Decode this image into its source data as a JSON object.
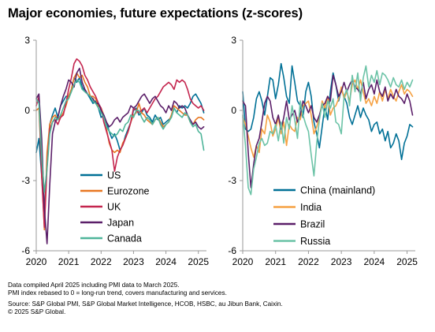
{
  "title": "Major economies, future expectations (z-scores)",
  "footnotes": {
    "line1": "Data compiled April 2025 including PMI data to March 2025.",
    "line2": "PMI index rebased to 0 = long-run trend, covers manufacturing and services.",
    "line3": "Source: S&P Global PMI, S&P Global Market Intelligence, HCOB, HSBC, au Jibun Bank, Caixin.",
    "line4": "© 2025 S&P Global."
  },
  "chart_data": [
    {
      "type": "line",
      "title": "",
      "xlabel": "",
      "ylabel": "",
      "ylim": [
        -6,
        3
      ],
      "xlim": [
        "2020-01",
        "2025-03"
      ],
      "yticks": [
        3,
        0,
        -3,
        -6
      ],
      "xticks": [
        "2020",
        "2021",
        "2022",
        "2023",
        "2024",
        "2025"
      ],
      "legend_position": "bottom-right",
      "x_start": "2020-01",
      "series": [
        {
          "name": "US",
          "color": "#007096",
          "values": [
            -1.8,
            -1.2,
            -2.8,
            -4.5,
            -2.2,
            -0.6,
            -0.2,
            0.1,
            -0.3,
            0.2,
            0.4,
            0.6,
            0.6,
            0.9,
            1.4,
            1.2,
            1.4,
            1.0,
            0.8,
            0.7,
            0.5,
            0.3,
            0.4,
            0.1,
            -0.3,
            -0.2,
            -0.5,
            -0.9,
            -1.2,
            -1.0,
            -1.3,
            -1.7,
            -1.5,
            -1.1,
            -0.8,
            -0.5,
            0.0,
            0.1,
            -0.2,
            -0.1,
            0.1,
            -0.2,
            -0.3,
            -0.5,
            -0.2,
            -0.4,
            -0.3,
            -0.6,
            -0.5,
            -0.4,
            -0.3,
            0.1,
            -0.1,
            0.2,
            0.1,
            0.2,
            0.1,
            0.3,
            0.6,
            0.7,
            0.5,
            0.3,
            -0.1
          ]
        },
        {
          "name": "Eurozone",
          "color": "#e87722",
          "values": [
            0.0,
            0.1,
            -2.6,
            -5.1,
            -1.8,
            -0.6,
            -0.3,
            -0.2,
            -0.4,
            -0.3,
            -0.1,
            0.2,
            0.6,
            0.9,
            1.4,
            1.6,
            1.4,
            1.5,
            1.2,
            1.0,
            0.6,
            0.6,
            0.5,
            0.2,
            0.1,
            -0.2,
            -0.8,
            -1.4,
            -1.7,
            -1.8,
            -1.7,
            -1.8,
            -1.4,
            -1.2,
            -0.9,
            -0.5,
            -0.2,
            -0.1,
            0.3,
            -0.1,
            -0.2,
            -0.4,
            -0.5,
            -0.6,
            -0.4,
            -0.3,
            -0.5,
            -0.7,
            -0.6,
            -0.5,
            -0.2,
            0.2,
            0.1,
            0.0,
            -0.1,
            -0.2,
            -0.2,
            -0.5,
            -0.6,
            -0.4,
            -0.3,
            -0.3,
            -0.4
          ]
        },
        {
          "name": "UK",
          "color": "#c4254e",
          "values": [
            0.2,
            0.6,
            -2.8,
            -5.0,
            -2.4,
            -0.8,
            -0.5,
            -0.4,
            -0.6,
            -0.3,
            -0.2,
            0.3,
            0.9,
            1.4,
            2.0,
            2.2,
            2.1,
            1.9,
            1.5,
            1.3,
            1.0,
            0.8,
            0.6,
            0.3,
            0.1,
            -0.5,
            -0.9,
            -1.3,
            -1.7,
            -2.6,
            -2.0,
            -1.7,
            -1.5,
            -1.2,
            -0.9,
            -0.5,
            0.1,
            0.0,
            -0.1,
            0.0,
            0.1,
            -0.1,
            0.1,
            0.3,
            0.5,
            0.6,
            0.8,
            1.0,
            1.1,
            1.2,
            1.1,
            0.9,
            1.3,
            1.2,
            1.3,
            1.2,
            0.9,
            0.5,
            0.3,
            0.2,
            0.1,
            0.2,
            0.0
          ]
        },
        {
          "name": "Japan",
          "color": "#5b1f69",
          "values": [
            0.5,
            0.7,
            -1.2,
            -4.2,
            -5.7,
            -3.2,
            -1.0,
            -0.5,
            -0.3,
            0.2,
            0.6,
            0.9,
            1.3,
            1.2,
            1.0,
            1.6,
            1.8,
            1.2,
            0.9,
            0.7,
            0.6,
            0.5,
            0.3,
            0.3,
            0.0,
            -0.2,
            -0.5,
            -0.7,
            -0.6,
            -0.4,
            -0.3,
            -0.5,
            -0.3,
            -0.2,
            -0.1,
            0.2,
            0.1,
            0.2,
            0.4,
            0.6,
            0.7,
            0.5,
            0.3,
            0.5,
            0.6,
            0.4,
            0.2,
            0.1,
            -0.1,
            0.2,
            0.0,
            0.4,
            0.3,
            0.1,
            0.2,
            0.1,
            -0.2,
            -0.4,
            -0.6,
            -0.5,
            -0.7,
            -0.8,
            -0.7
          ]
        },
        {
          "name": "Canada",
          "color": "#4fb59a",
          "values": [
            0.5,
            0.3,
            -2.0,
            -3.5,
            -2.5,
            -1.0,
            -0.5,
            -0.3,
            -0.4,
            -0.2,
            0.1,
            0.4,
            0.5,
            0.8,
            1.1,
            1.3,
            1.2,
            0.9,
            0.8,
            0.7,
            0.6,
            0.4,
            0.3,
            0.1,
            -0.1,
            -0.3,
            -0.7,
            -0.9,
            -1.0,
            -1.1,
            -1.0,
            -0.8,
            -0.9,
            -0.6,
            -0.5,
            -0.2,
            -0.3,
            0.0,
            0.0,
            -0.3,
            -0.5,
            -0.3,
            -0.4,
            -0.6,
            -0.4,
            -0.3,
            -0.6,
            -0.8,
            -0.6,
            -0.5,
            -0.3,
            0.1,
            -0.1,
            -0.2,
            -0.3,
            -0.1,
            -0.2,
            -0.5,
            -0.7,
            -0.6,
            -0.9,
            -1.0,
            -1.7
          ]
        }
      ]
    },
    {
      "type": "line",
      "title": "",
      "xlabel": "",
      "ylabel": "",
      "ylim": [
        -6,
        3
      ],
      "xlim": [
        "2020-01",
        "2025-03"
      ],
      "yticks": [
        3,
        0,
        -3,
        -6
      ],
      "xticks": [
        "2020",
        "2021",
        "2022",
        "2023",
        "2024",
        "2025"
      ],
      "legend_position": "bottom-right",
      "x_start": "2020-01",
      "series": [
        {
          "name": "China (mainland)",
          "color": "#007096",
          "values": [
            0.8,
            -0.8,
            -0.9,
            -0.8,
            -0.3,
            0.5,
            0.8,
            0.4,
            -0.2,
            0.6,
            1.4,
            1.3,
            0.5,
            1.1,
            2.0,
            1.4,
            0.6,
            0.3,
            1.9,
            1.2,
            0.4,
            0.2,
            -0.3,
            0.8,
            1.2,
            0.6,
            -0.5,
            -1.0,
            -1.6,
            -0.7,
            0.2,
            -0.4,
            0.8,
            1.6,
            1.1,
            0.4,
            0.9,
            0.6,
            0.3,
            -0.3,
            -0.6,
            -0.2,
            0.2,
            -0.3,
            0.1,
            -0.2,
            -0.4,
            -0.9,
            -0.6,
            -0.5,
            -1.0,
            -0.8,
            -1.3,
            -0.9,
            -1.6,
            -1.4,
            -1.0,
            -1.3,
            -2.1,
            -1.4,
            -1.1,
            -0.6,
            -0.7
          ]
        },
        {
          "name": "India",
          "color": "#f6a244",
          "values": [
            -0.3,
            -0.6,
            -1.1,
            -1.6,
            -2.0,
            -1.5,
            -1.8,
            -0.8,
            -1.0,
            -0.2,
            -0.5,
            -1.1,
            -0.8,
            -0.3,
            -1.0,
            -0.5,
            -1.5,
            -0.6,
            -0.8,
            -0.9,
            -0.3,
            -0.4,
            0.2,
            0.3,
            0.4,
            -0.2,
            -1.0,
            -0.7,
            -0.3,
            0.4,
            0.1,
            0.6,
            -0.2,
            0.1,
            0.2,
            0.5,
            1.0,
            0.5,
            0.8,
            0.4,
            1.1,
            1.3,
            0.9,
            1.3,
            0.8,
            0.3,
            0.5,
            0.2,
            0.6,
            0.3,
            0.8,
            0.4,
            0.9,
            0.5,
            0.9,
            0.6,
            0.4,
            0.8,
            1.1,
            0.7,
            0.9,
            0.8,
            0.6
          ]
        },
        {
          "name": "Brazil",
          "color": "#5b1f69",
          "values": [
            0.4,
            0.2,
            -1.8,
            -3.3,
            -2.3,
            -1.5,
            -1.2,
            -0.5,
            0.3,
            0.6,
            0.4,
            -0.3,
            -0.6,
            -0.2,
            -0.8,
            -0.3,
            0.4,
            -0.4,
            -0.2,
            0.0,
            -0.5,
            -0.2,
            0.4,
            0.2,
            -0.1,
            0.2,
            -0.3,
            -0.5,
            -0.2,
            0.2,
            0.3,
            0.6,
            0.4,
            1.5,
            1.1,
            0.6,
            0.8,
            1.2,
            0.8,
            1.1,
            1.3,
            1.0,
            0.9,
            0.7,
            1.2,
            0.5,
            0.9,
            1.1,
            0.7,
            1.3,
            0.8,
            0.6,
            1.0,
            0.4,
            0.7,
            0.5,
            0.9,
            0.6,
            0.5,
            0.3,
            0.7,
            0.4,
            -0.2
          ]
        },
        {
          "name": "Russia",
          "color": "#6cc3a7",
          "values": [
            -0.2,
            -1.5,
            -3.3,
            -3.6,
            -2.5,
            -2.0,
            -1.4,
            -1.2,
            -1.5,
            -1.4,
            -0.9,
            -1.0,
            -0.6,
            -1.3,
            -0.5,
            -1.4,
            -0.3,
            -0.8,
            0.2,
            -0.4,
            -1.2,
            0.4,
            -0.2,
            -0.6,
            -0.9,
            -1.9,
            -2.8,
            -1.4,
            -0.4,
            0.3,
            -0.3,
            0.4,
            0.1,
            0.5,
            -0.5,
            -0.6,
            -1.0,
            0.6,
            0.9,
            0.2,
            1.5,
            0.8,
            1.6,
            0.4,
            1.4,
            1.9,
            1.0,
            1.5,
            1.2,
            1.7,
            1.1,
            1.6,
            1.5,
            1.3,
            1.0,
            1.4,
            1.1,
            1.0,
            1.3,
            0.9,
            1.2,
            1.0,
            1.3
          ]
        }
      ]
    }
  ]
}
